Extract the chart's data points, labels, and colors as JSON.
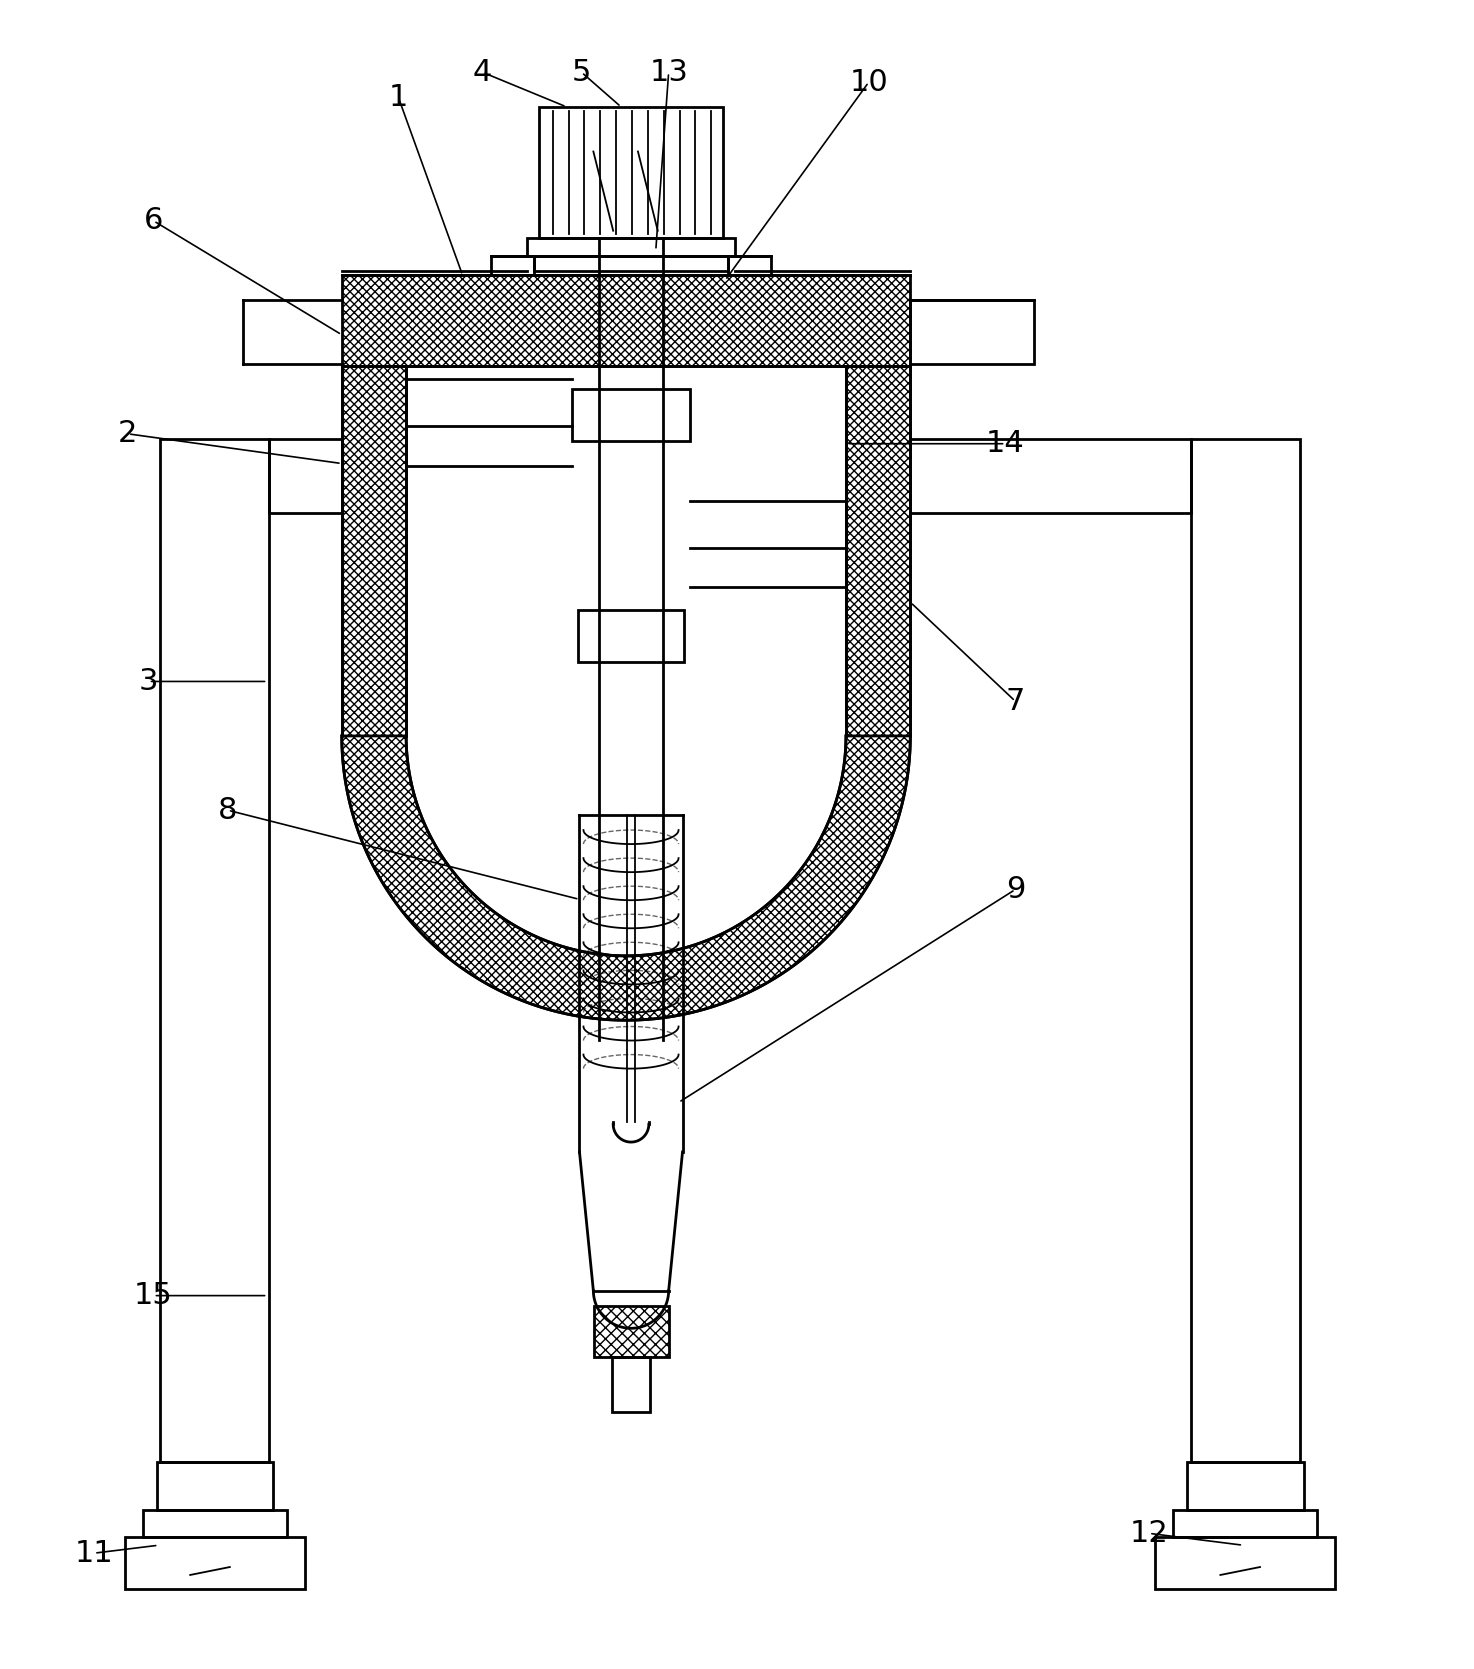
{
  "bg_color": "#ffffff",
  "line_color": "#000000",
  "fig_width": 14.74,
  "fig_height": 16.69,
  "annotations": [
    [
      "1",
      395,
      90,
      460,
      270
    ],
    [
      "4",
      480,
      65,
      565,
      100
    ],
    [
      "5",
      580,
      65,
      620,
      100
    ],
    [
      "13",
      668,
      65,
      655,
      245
    ],
    [
      "10",
      870,
      75,
      725,
      275
    ],
    [
      "6",
      148,
      215,
      338,
      330
    ],
    [
      "2",
      122,
      430,
      338,
      460
    ],
    [
      "14",
      1008,
      440,
      848,
      440
    ],
    [
      "3",
      143,
      680,
      263,
      680
    ],
    [
      "7",
      1018,
      700,
      912,
      600
    ],
    [
      "8",
      223,
      810,
      578,
      900
    ],
    [
      "9",
      1018,
      890,
      678,
      1105
    ],
    [
      "15",
      148,
      1300,
      263,
      1300
    ],
    [
      "11",
      88,
      1560,
      153,
      1552
    ],
    [
      "12",
      1153,
      1540,
      1248,
      1552
    ]
  ]
}
